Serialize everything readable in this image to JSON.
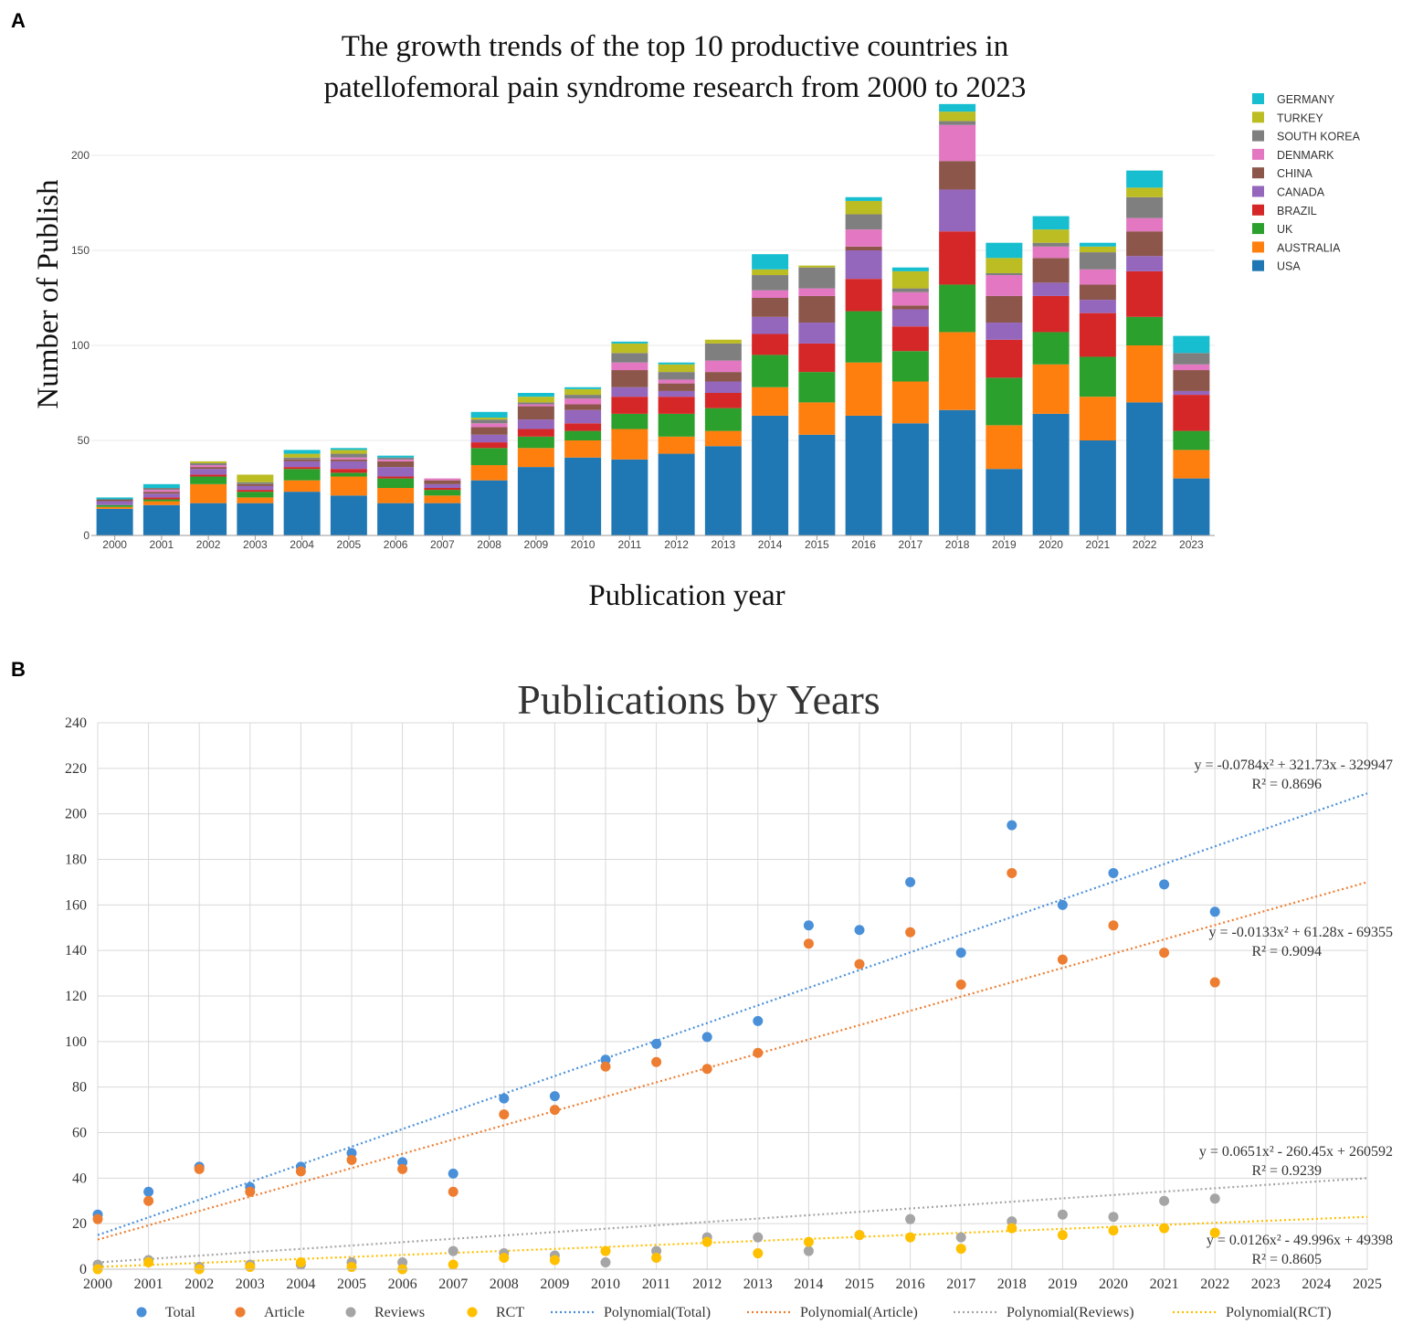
{
  "panel_a_label": "A",
  "panel_b_label": "B",
  "chart_data": [
    {
      "type": "bar",
      "stacked": true,
      "title_lines": [
        "The growth trends of the top 10 productive countries in",
        "patellofemoral pain syndrome research from 2000 to 2023"
      ],
      "xlabel": "Publication year",
      "ylabel": "Number of Publish",
      "ylim": [
        0,
        225
      ],
      "yticks": [
        0,
        50,
        100,
        150,
        200
      ],
      "categories": [
        "2000",
        "2001",
        "2002",
        "2003",
        "2004",
        "2005",
        "2006",
        "2007",
        "2008",
        "2009",
        "2010",
        "2011",
        "2012",
        "2013",
        "2014",
        "2015",
        "2016",
        "2017",
        "2018",
        "2019",
        "2020",
        "2021",
        "2022",
        "2023"
      ],
      "legend_position": "right",
      "series": [
        {
          "name": "USA",
          "color": "#1f77b4",
          "values": [
            14,
            16,
            17,
            17,
            23,
            21,
            17,
            17,
            29,
            36,
            41,
            40,
            43,
            47,
            63,
            53,
            63,
            59,
            66,
            35,
            64,
            50,
            70,
            30
          ]
        },
        {
          "name": "AUSTRALIA",
          "color": "#ff7f0e",
          "values": [
            1,
            2,
            10,
            3,
            6,
            10,
            8,
            4,
            8,
            10,
            9,
            16,
            9,
            8,
            15,
            17,
            28,
            22,
            41,
            23,
            26,
            23,
            30,
            15
          ]
        },
        {
          "name": "UK",
          "color": "#2ca02c",
          "values": [
            1,
            1,
            4,
            3,
            6,
            2,
            5,
            3,
            9,
            6,
            5,
            8,
            12,
            12,
            17,
            16,
            27,
            16,
            25,
            25,
            17,
            21,
            15,
            10
          ]
        },
        {
          "name": "BRAZIL",
          "color": "#d62728",
          "values": [
            0,
            1,
            1,
            1,
            1,
            2,
            1,
            1,
            3,
            4,
            4,
            9,
            9,
            8,
            11,
            15,
            17,
            13,
            28,
            20,
            19,
            23,
            24,
            19
          ]
        },
        {
          "name": "CANADA",
          "color": "#9467bd",
          "values": [
            2,
            2,
            3,
            2,
            3,
            4,
            5,
            2,
            4,
            5,
            7,
            5,
            3,
            6,
            9,
            11,
            15,
            9,
            22,
            9,
            7,
            7,
            8,
            2
          ]
        },
        {
          "name": "CHINA",
          "color": "#8c564b",
          "values": [
            1,
            1,
            1,
            1,
            1,
            1,
            3,
            2,
            4,
            7,
            3,
            9,
            4,
            5,
            10,
            14,
            2,
            2,
            15,
            14,
            13,
            8,
            13,
            11
          ]
        },
        {
          "name": "DENMARK",
          "color": "#e377c2",
          "values": [
            0,
            1,
            1,
            0,
            0,
            1,
            1,
            1,
            2,
            1,
            3,
            4,
            2,
            6,
            4,
            4,
            9,
            7,
            19,
            11,
            6,
            8,
            7,
            3
          ]
        },
        {
          "name": "SOUTH KOREA",
          "color": "#7f7f7f",
          "values": [
            0,
            1,
            1,
            1,
            1,
            2,
            1,
            0,
            2,
            1,
            2,
            5,
            4,
            9,
            8,
            11,
            8,
            2,
            2,
            1,
            2,
            9,
            11,
            6
          ]
        },
        {
          "name": "TURKEY",
          "color": "#bcbd22",
          "values": [
            0,
            0,
            1,
            4,
            2,
            2,
            0,
            0,
            1,
            3,
            3,
            5,
            4,
            2,
            3,
            1,
            7,
            9,
            5,
            8,
            7,
            3,
            5,
            0
          ]
        },
        {
          "name": "GERMANY",
          "color": "#17becf",
          "values": [
            1,
            2,
            0,
            0,
            2,
            1,
            1,
            0,
            3,
            2,
            1,
            1,
            1,
            0,
            8,
            0,
            2,
            2,
            4,
            8,
            7,
            2,
            9,
            9
          ]
        }
      ]
    },
    {
      "type": "scatter",
      "title": "Publications by Years",
      "xlim": [
        2000,
        2025
      ],
      "ylim": [
        0,
        240
      ],
      "xticks": [
        "2000",
        "2001",
        "2002",
        "2003",
        "2004",
        "2005",
        "2006",
        "2007",
        "2008",
        "2009",
        "2010",
        "2011",
        "2012",
        "2013",
        "2014",
        "2015",
        "2016",
        "2017",
        "2018",
        "2019",
        "2020",
        "2021",
        "2022",
        "2023",
        "2024",
        "2025"
      ],
      "yticks": [
        "0",
        "20",
        "40",
        "60",
        "80",
        "100",
        "120",
        "140",
        "160",
        "180",
        "200",
        "220",
        "240"
      ],
      "x": [
        2000,
        2001,
        2002,
        2003,
        2004,
        2005,
        2006,
        2007,
        2008,
        2009,
        2010,
        2011,
        2012,
        2013,
        2014,
        2015,
        2016,
        2017,
        2018,
        2019,
        2020,
        2021,
        2022
      ],
      "series": [
        {
          "name": "Total",
          "color": "#4a90d9",
          "values": [
            24,
            34,
            45,
            36,
            45,
            51,
            47,
            42,
            75,
            76,
            92,
            99,
            102,
            109,
            151,
            149,
            170,
            139,
            195,
            160,
            174,
            169,
            157
          ]
        },
        {
          "name": "Article",
          "color": "#ed7d31",
          "values": [
            22,
            30,
            44,
            34,
            43,
            48,
            44,
            34,
            68,
            70,
            89,
            91,
            88,
            95,
            143,
            134,
            148,
            125,
            174,
            136,
            151,
            139,
            126
          ]
        },
        {
          "name": "Reviews",
          "color": "#a5a5a5",
          "values": [
            2,
            4,
            1,
            2,
            2,
            3,
            3,
            8,
            7,
            6,
            3,
            8,
            14,
            14,
            8,
            15,
            22,
            14,
            21,
            24,
            23,
            30,
            31
          ]
        },
        {
          "name": "RCT",
          "color": "#ffc000",
          "values": [
            0,
            3,
            0,
            1,
            3,
            1,
            0,
            2,
            5,
            4,
            8,
            5,
            12,
            7,
            12,
            15,
            14,
            9,
            18,
            15,
            17,
            18,
            16
          ]
        }
      ],
      "trendlines": [
        {
          "name": "Polynomial(Total)",
          "color": "#4a90d9",
          "equation": "y = -0.0784x² + 321.73x - 329947",
          "r2": "R² = 0.8696",
          "start": 15,
          "end": 209
        },
        {
          "name": "Polynomial(Article)",
          "color": "#ed7d31",
          "equation": "y = -0.0133x² + 61.28x - 69355",
          "r2": "R² = 0.9094",
          "start": 13,
          "end": 170
        },
        {
          "name": "Polynomial(Reviews)",
          "color": "#a5a5a5",
          "equation": "y = 0.0651x² - 260.45x + 260592",
          "r2": "R² = 0.9239",
          "start": 3,
          "end": 40
        },
        {
          "name": "Polynomial(RCT)",
          "color": "#ffc000",
          "equation": "y = 0.0126x² - 49.996x + 49398",
          "r2": "R² = 0.8605",
          "start": 1,
          "end": 23
        }
      ]
    }
  ]
}
